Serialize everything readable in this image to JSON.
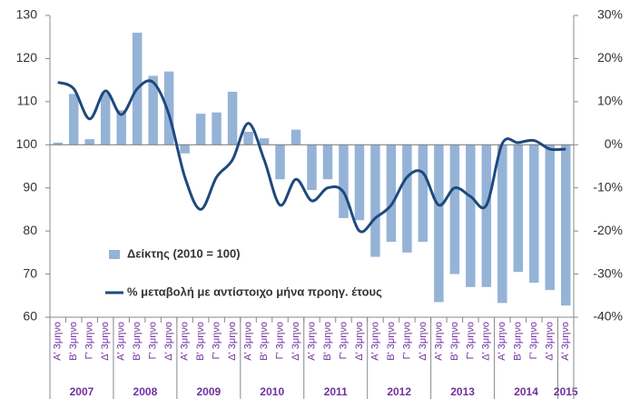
{
  "chart_data": {
    "type": "bar-line",
    "categories": [
      "Α' 3μηνο",
      "Β' 3μηνο",
      "Γ' 3μηνο",
      "Δ' 3μηνο",
      "Α' 3μηνο",
      "Β' 3μηνο",
      "Γ' 3μηνο",
      "Δ' 3μηνο",
      "Α' 3μηνο",
      "Β' 3μηνο",
      "Γ' 3μηνο",
      "Δ' 3μηνο",
      "Α' 3μηνο",
      "Β' 3μηνο",
      "Γ' 3μηνο",
      "Δ' 3μηνο",
      "Α' 3μηνο",
      "Β' 3μηνο",
      "Γ' 3μηνο",
      "Δ' 3μηνο",
      "Α' 3μηνο",
      "Β' 3μηνο",
      "Γ' 3μηνο",
      "Δ' 3μηνο",
      "Α' 3μηνο",
      "Β' 3μηνο",
      "Γ' 3μηνο",
      "Δ' 3μηνο",
      "Α' 3μηνο",
      "Β' 3μηνο",
      "Γ' 3μηνο",
      "Δ' 3μηνο",
      "Α' 3μηνο"
    ],
    "years": [
      "2007",
      "2008",
      "2009",
      "2010",
      "2011",
      "2012",
      "2013",
      "2014",
      "2015"
    ],
    "series": [
      {
        "name": "Δείκτης (2010 = 100)",
        "type": "bar",
        "color": "#95b3d7",
        "baseline": 100,
        "values": [
          100.5,
          111.8,
          101.3,
          112,
          108,
          126,
          116,
          117,
          98,
          107.2,
          107.5,
          112.3,
          103,
          101.5,
          92,
          103.5,
          89.5,
          92,
          83,
          82.5,
          74,
          77.5,
          75,
          77.5,
          63.5,
          70,
          67,
          67,
          63.3,
          70.5,
          68,
          66.3,
          62.7
        ]
      },
      {
        "name": "% μεταβολή με αντίστοιχο μήνα προηγ. έτους",
        "type": "line",
        "axis": "y2",
        "color": "#1f497d",
        "values": [
          14.5,
          13,
          6,
          12.5,
          7,
          13,
          14.5,
          7,
          -7.5,
          -15,
          -7.5,
          -3.5,
          5,
          -3.5,
          -14,
          -8,
          -13,
          -10,
          -11,
          -20,
          -17,
          -14,
          -7.5,
          -6.5,
          -14,
          -10,
          -12,
          -14,
          0.3,
          0.5,
          1,
          -1,
          -1
        ]
      }
    ],
    "ylim": [
      60,
      130
    ],
    "yticks": [
      60,
      70,
      80,
      90,
      100,
      110,
      120,
      130
    ],
    "y2lim": [
      -40,
      30
    ],
    "y2ticks": [
      {
        "value": -40,
        "label": "-40%"
      },
      {
        "value": -30,
        "label": "-30%"
      },
      {
        "value": -20,
        "label": "-20%"
      },
      {
        "value": -10,
        "label": "-10%"
      },
      {
        "value": 0,
        "label": "0%"
      },
      {
        "value": 10,
        "label": "10%"
      },
      {
        "value": 20,
        "label": "20%"
      },
      {
        "value": 30,
        "label": "30%"
      }
    ],
    "legend_position": "lower-left"
  }
}
